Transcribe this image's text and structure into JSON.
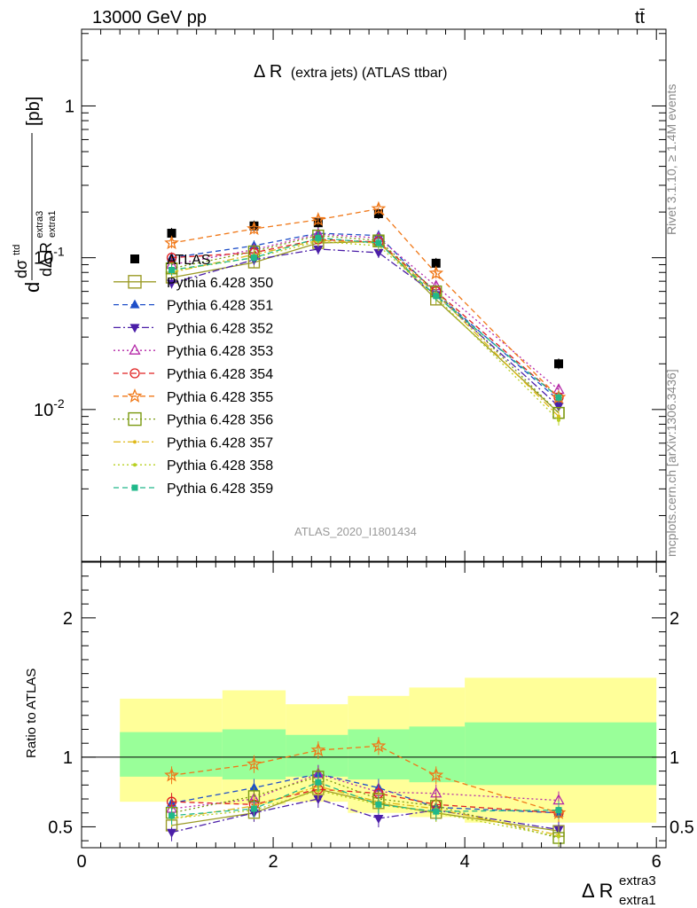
{
  "header": {
    "energy": "13000 GeV pp",
    "process": "tt̄",
    "title_main": "Δ R",
    "title_sub": "(extra jets) (ATLAS ttbar)",
    "analysis_id": "ATLAS_2020_I1801434",
    "rivet_note": "Rivet 3.1.10, ≥ 1.4M events",
    "mcplots_note": "mcplots.cern.ch [arXiv:1306.3436]"
  },
  "axes": {
    "ylabel_top": "dσ^ttd / dΔ R_extra1^extra3 [pb]",
    "ylabel_ratio": "Ratio to ATLAS",
    "xlabel": "Δ R",
    "xlabel_sup": "extra3",
    "xlabel_sub": "extra1",
    "ylabel_top_prefix": "d",
    "ylabel_top_sigma": "dσ",
    "ylabel_top_sigma_sup": "ttd",
    "ylabel_top_denom": "dΔ R",
    "ylabel_top_denom_sub": "extra1",
    "ylabel_top_denom_sup": "extra3",
    "ylabel_top_unit": "[pb]"
  },
  "chart_data": [
    {
      "type": "line",
      "panel": "main",
      "ylog": true,
      "ylim": [
        0.001,
        3.2
      ],
      "xlim": [
        0,
        6.1
      ],
      "x_ticks": [
        0,
        2,
        4,
        6
      ],
      "y_tick_labels": [
        "1",
        "10^-1",
        "10^-2"
      ],
      "x": [
        0.94,
        1.8,
        2.47,
        3.1,
        3.7,
        4.98
      ],
      "series": [
        {
          "name": "ATLAS",
          "color": "#000000",
          "marker": "square-filled",
          "dash": "none",
          "values": [
            0.145,
            0.162,
            0.17,
            0.195,
            0.092,
            0.02
          ]
        },
        {
          "name": "Pythia 6.428 350",
          "color": "#9b9b26",
          "marker": "square-open",
          "dash": "solid",
          "values": [
            0.074,
            0.093,
            0.125,
            0.128,
            0.053,
            0.0095
          ]
        },
        {
          "name": "Pythia 6.428 351",
          "color": "#1f4fc8",
          "marker": "triangle-up-filled",
          "dash": "dashed",
          "values": [
            0.1,
            0.12,
            0.145,
            0.14,
            0.058,
            0.0115
          ]
        },
        {
          "name": "Pythia 6.428 352",
          "color": "#4b1ea8",
          "marker": "triangle-down-filled",
          "dash": "dashdot",
          "values": [
            0.068,
            0.097,
            0.114,
            0.108,
            0.057,
            0.0105
          ]
        },
        {
          "name": "Pythia 6.428 353",
          "color": "#b52aa8",
          "marker": "triangle-up-open",
          "dash": "dotted",
          "values": [
            0.09,
            0.113,
            0.143,
            0.135,
            0.065,
            0.0135
          ]
        },
        {
          "name": "Pythia 6.428 354",
          "color": "#e02020",
          "marker": "circle-open",
          "dash": "dashed",
          "values": [
            0.1,
            0.108,
            0.132,
            0.127,
            0.06,
            0.012
          ]
        },
        {
          "name": "Pythia 6.428 355",
          "color": "#f07818",
          "marker": "star-open",
          "dash": "dashed",
          "values": [
            0.125,
            0.155,
            0.178,
            0.21,
            0.079,
            0.012
          ]
        },
        {
          "name": "Pythia 6.428 356",
          "color": "#7a9a10",
          "marker": "square-open",
          "dash": "dotted",
          "values": [
            0.085,
            0.11,
            0.14,
            0.13,
            0.06,
            0.0095
          ]
        },
        {
          "name": "Pythia 6.428 357",
          "color": "#e0b818",
          "marker": "dot",
          "dash": "dashdot",
          "values": [
            0.08,
            0.105,
            0.13,
            0.125,
            0.058,
            0.009
          ]
        },
        {
          "name": "Pythia 6.428 358",
          "color": "#b8d020",
          "marker": "dot",
          "dash": "dotted",
          "values": [
            0.082,
            0.1,
            0.128,
            0.12,
            0.055,
            0.0085
          ]
        },
        {
          "name": "Pythia 6.428 359",
          "color": "#20b88a",
          "marker": "square-filled-small",
          "dash": "dashed",
          "values": [
            0.083,
            0.1,
            0.135,
            0.125,
            0.056,
            0.012
          ]
        }
      ]
    },
    {
      "type": "line",
      "panel": "ratio",
      "ylim": [
        0.35,
        2.4
      ],
      "xlim": [
        0,
        6.1
      ],
      "x_ticks": [
        0,
        2,
        4,
        6
      ],
      "y_tick_labels": [
        "0.5",
        "1",
        "2"
      ],
      "x": [
        0.94,
        1.8,
        2.47,
        3.1,
        3.7,
        4.98
      ],
      "bands": {
        "edges": [
          0.4,
          1.47,
          2.13,
          2.78,
          3.42,
          4.0,
          6.0
        ],
        "yellow_low": [
          0.68,
          0.66,
          0.68,
          0.6,
          0.57,
          0.53
        ],
        "yellow_high": [
          1.42,
          1.48,
          1.38,
          1.44,
          1.5,
          1.57
        ],
        "green_low": [
          0.86,
          0.84,
          0.86,
          0.84,
          0.82,
          0.8
        ],
        "green_high": [
          1.18,
          1.2,
          1.16,
          1.2,
          1.22,
          1.25
        ]
      },
      "series": [
        {
          "name": "Pythia 6.428 350",
          "color": "#9b9b26",
          "marker": "square-open",
          "dash": "solid",
          "values": [
            0.51,
            0.6,
            0.77,
            0.67,
            0.6,
            0.47
          ]
        },
        {
          "name": "Pythia 6.428 351",
          "color": "#1f4fc8",
          "marker": "triangle-up-filled",
          "dash": "dashed",
          "values": [
            0.67,
            0.78,
            0.88,
            0.78,
            0.64,
            0.6
          ]
        },
        {
          "name": "Pythia 6.428 352",
          "color": "#4b1ea8",
          "marker": "triangle-down-filled",
          "dash": "dashdot",
          "values": [
            0.46,
            0.6,
            0.7,
            0.56,
            0.62,
            0.48
          ]
        },
        {
          "name": "Pythia 6.428 353",
          "color": "#b52aa8",
          "marker": "triangle-up-open",
          "dash": "dotted",
          "values": [
            0.63,
            0.7,
            0.88,
            0.75,
            0.74,
            0.69
          ]
        },
        {
          "name": "Pythia 6.428 354",
          "color": "#e02020",
          "marker": "circle-open",
          "dash": "dashed",
          "values": [
            0.68,
            0.66,
            0.77,
            0.74,
            0.66,
            0.6
          ]
        },
        {
          "name": "Pythia 6.428 355",
          "color": "#f07818",
          "marker": "star-open",
          "dash": "dashed",
          "values": [
            0.87,
            0.95,
            1.05,
            1.08,
            0.87,
            0.6
          ]
        },
        {
          "name": "Pythia 6.428 356",
          "color": "#7a9a10",
          "marker": "square-open",
          "dash": "dotted",
          "values": [
            0.6,
            0.72,
            0.86,
            0.7,
            0.65,
            0.42
          ]
        },
        {
          "name": "Pythia 6.428 357",
          "color": "#e0b818",
          "marker": "dot",
          "dash": "dashdot",
          "values": [
            0.56,
            0.65,
            0.79,
            0.68,
            0.63,
            0.44
          ]
        },
        {
          "name": "Pythia 6.428 358",
          "color": "#b8d020",
          "marker": "dot",
          "dash": "dotted",
          "values": [
            0.56,
            0.62,
            0.76,
            0.66,
            0.6,
            0.43
          ]
        },
        {
          "name": "Pythia 6.428 359",
          "color": "#20b88a",
          "marker": "square-filled-small",
          "dash": "dashed",
          "values": [
            0.58,
            0.63,
            0.82,
            0.66,
            0.61,
            0.62
          ]
        }
      ]
    }
  ]
}
